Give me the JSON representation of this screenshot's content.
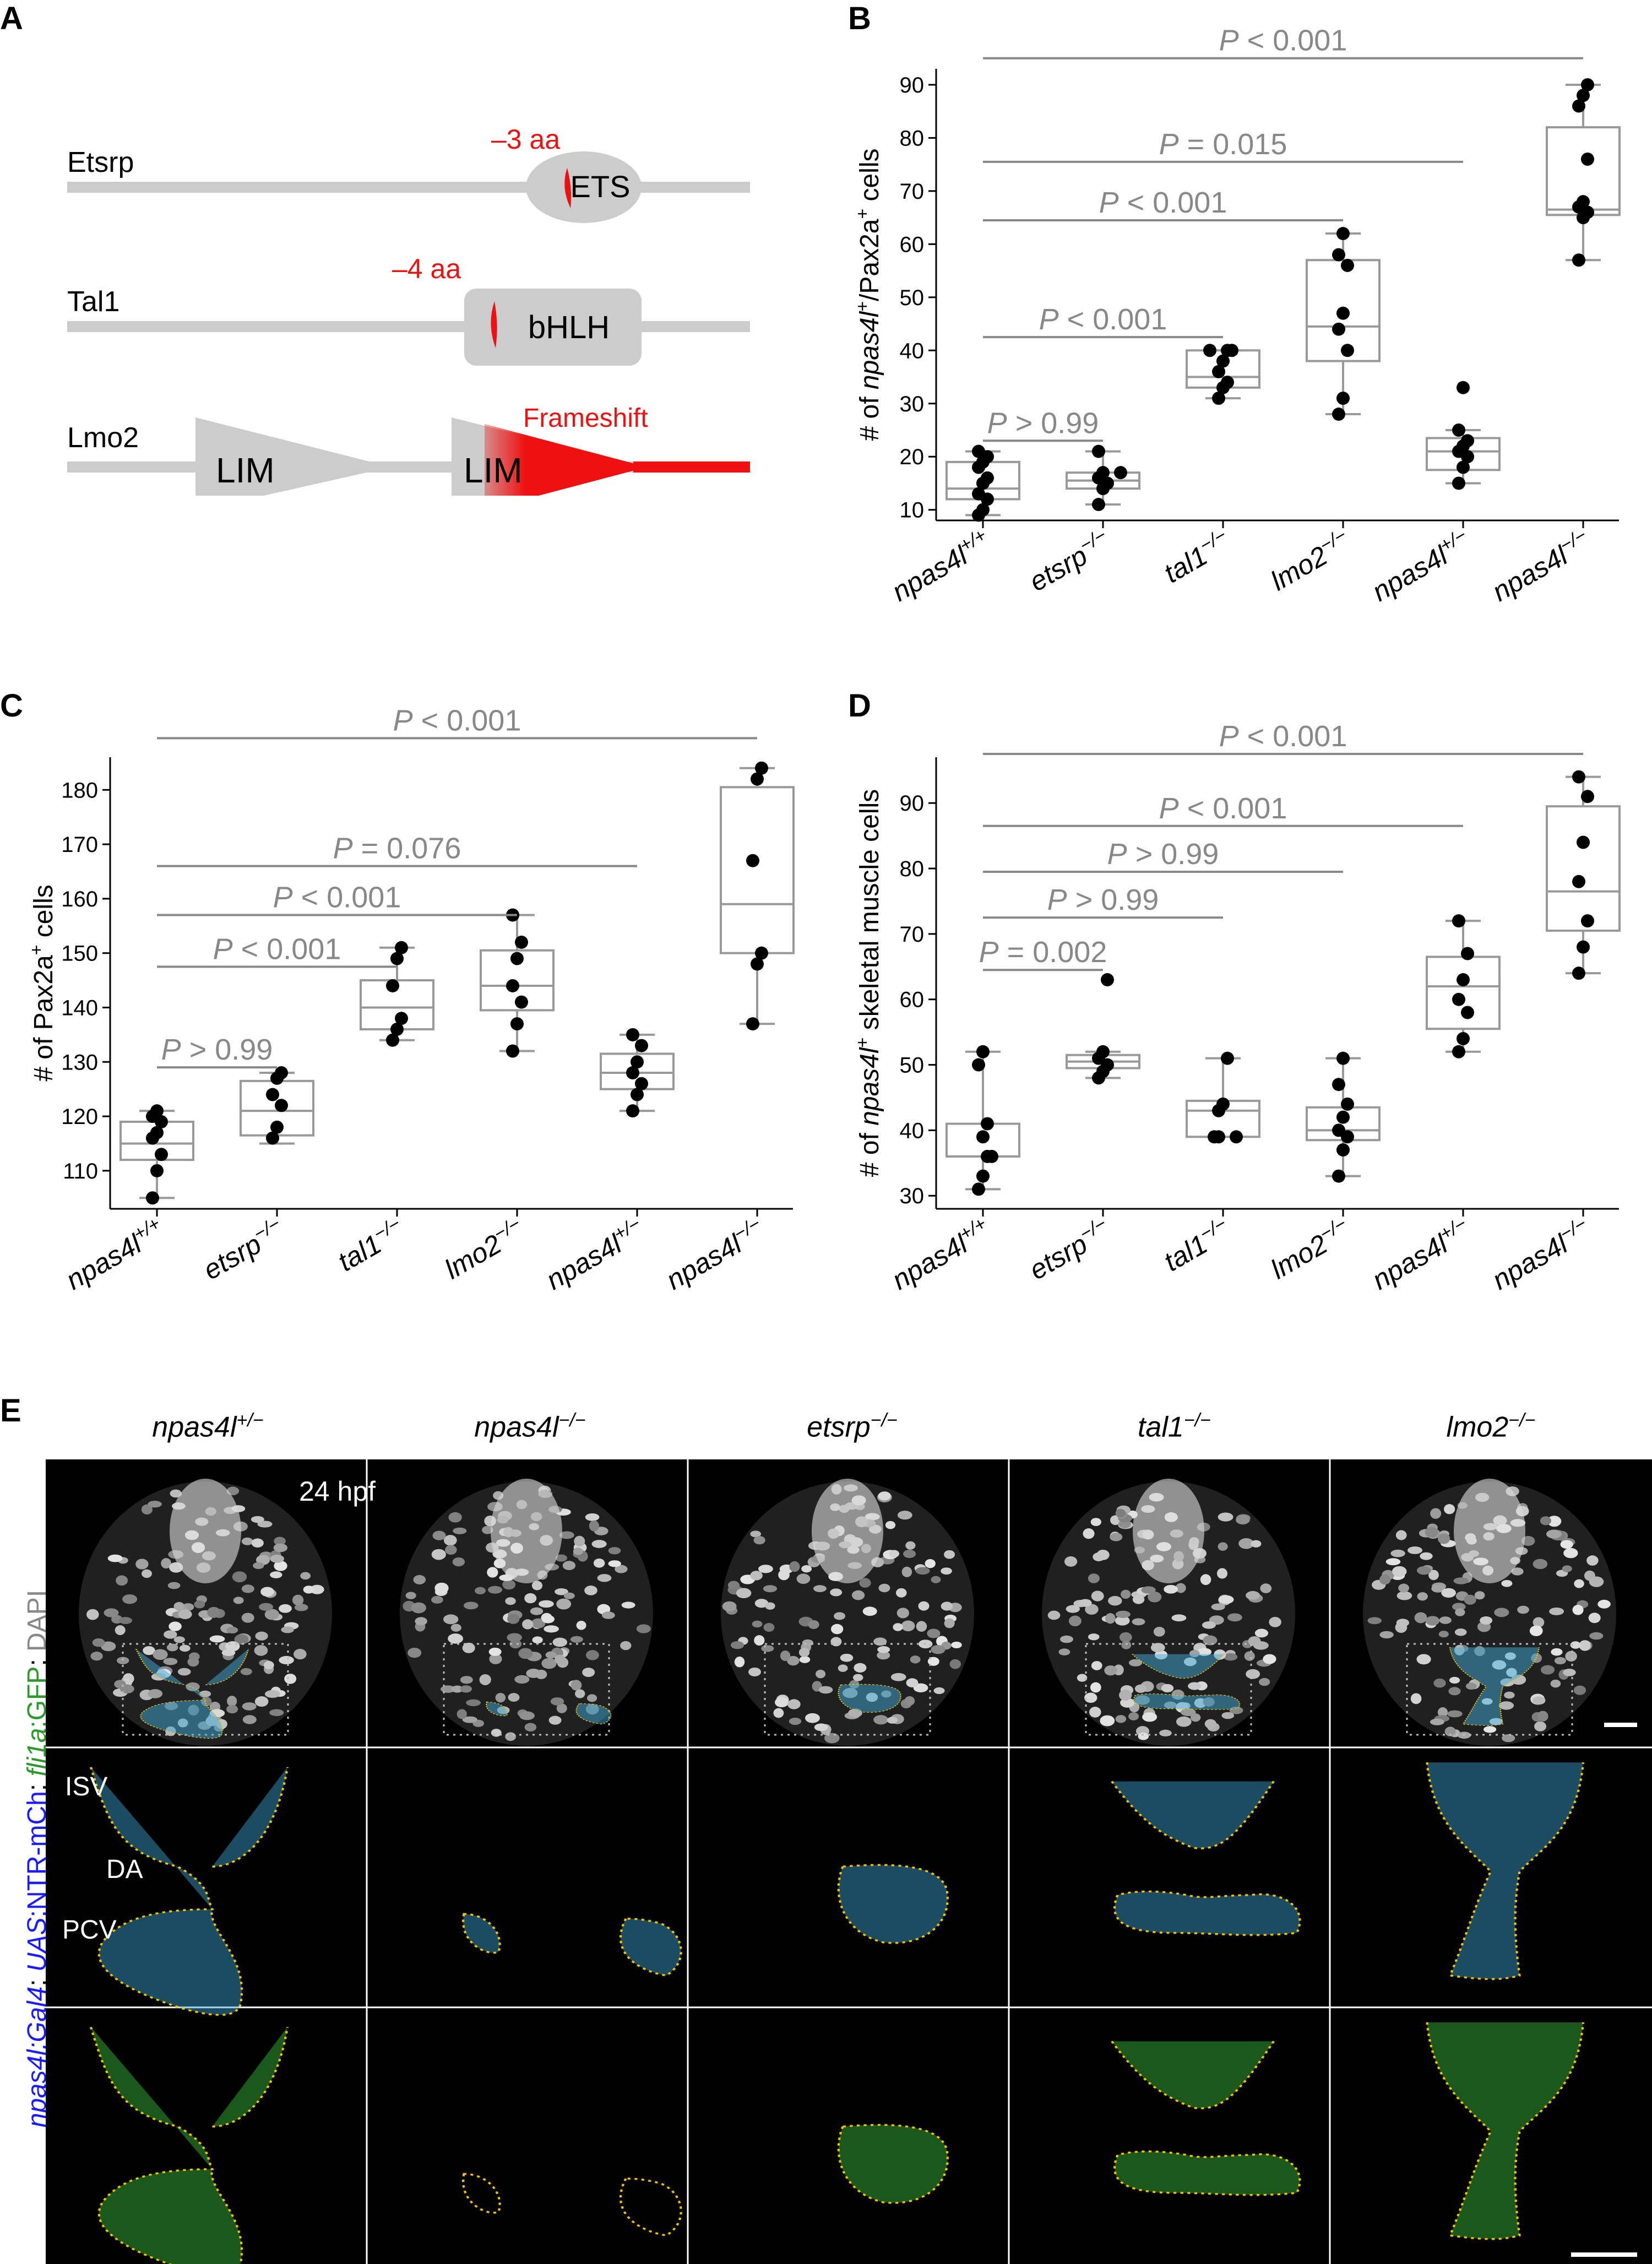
{
  "panel_letters": [
    "A",
    "B",
    "C",
    "D",
    "E"
  ],
  "panelA": {
    "proteins": [
      {
        "name": "Etsrp",
        "domain": "ETS",
        "mutation": "–3 aa"
      },
      {
        "name": "Tal1",
        "domain": "bHLH",
        "mutation": "–4 aa"
      },
      {
        "name": "Lmo2",
        "domains": [
          "LIM",
          "LIM"
        ],
        "mutation": "Frameshift"
      }
    ],
    "colors": {
      "protein": "#cccccc",
      "mutation": "#ee1111"
    }
  },
  "chart_data": [
    {
      "panel": "B",
      "type": "box",
      "ylabel_parts": [
        "# of ",
        "npas4l",
        "+",
        "/Pax2a",
        "+",
        " cells"
      ],
      "ylim": [
        8,
        93
      ],
      "yticks": [
        10,
        20,
        30,
        40,
        50,
        60,
        70,
        80,
        90
      ],
      "categories": [
        {
          "g": "npas4l",
          "s": "+/+"
        },
        {
          "g": "etsrp",
          "s": "−/−"
        },
        {
          "g": "tal1",
          "s": "−/−"
        },
        {
          "g": "lmo2",
          "s": "−/−"
        },
        {
          "g": "npas4l",
          "s": "+/−"
        },
        {
          "g": "npas4l",
          "s": "−/−"
        }
      ],
      "boxes": [
        {
          "whislo": 9,
          "q1": 12,
          "med": 14,
          "q3": 19,
          "whishi": 21
        },
        {
          "whislo": 11,
          "q1": 14,
          "med": 15.5,
          "q3": 17,
          "whishi": 21
        },
        {
          "whislo": 31,
          "q1": 33,
          "med": 35,
          "q3": 40,
          "whishi": 40
        },
        {
          "whislo": 28,
          "q1": 38,
          "med": 44.5,
          "q3": 57,
          "whishi": 62
        },
        {
          "whislo": 15,
          "q1": 17.5,
          "med": 21,
          "q3": 23.5,
          "whishi": 25
        },
        {
          "whislo": 57,
          "q1": 65.5,
          "med": 66.5,
          "q3": 82,
          "whishi": 90
        }
      ],
      "points": [
        [
          9,
          10,
          12,
          13,
          15,
          16,
          18,
          19,
          20,
          21
        ],
        [
          11,
          14,
          15,
          16,
          17,
          17,
          21
        ],
        [
          31,
          33,
          34,
          36,
          38,
          40,
          40,
          40
        ],
        [
          28,
          31,
          40,
          44,
          47,
          56,
          58,
          62
        ],
        [
          15,
          18,
          20,
          21,
          22,
          23,
          25,
          33
        ],
        [
          57,
          65,
          66,
          67,
          68,
          76,
          86,
          88,
          90
        ]
      ],
      "comparisons": [
        {
          "from": 0,
          "to": 5,
          "label": "P < 0.001",
          "y": 95
        },
        {
          "from": 0,
          "to": 4,
          "label": "P = 0.015",
          "y": 75.5
        },
        {
          "from": 0,
          "to": 3,
          "label": "P < 0.001",
          "y": 64.5
        },
        {
          "from": 0,
          "to": 2,
          "label": "P < 0.001",
          "y": 42.5
        },
        {
          "from": 0,
          "to": 1,
          "label": "P > 0.99",
          "y": 23
        }
      ]
    },
    {
      "panel": "C",
      "type": "box",
      "ylabel_parts": [
        "# of Pax2a",
        "+",
        " cells"
      ],
      "ylim": [
        103,
        186
      ],
      "yticks": [
        110,
        120,
        130,
        140,
        150,
        160,
        170,
        180
      ],
      "categories": [
        {
          "g": "npas4l",
          "s": "+/+"
        },
        {
          "g": "etsrp",
          "s": "−/−"
        },
        {
          "g": "tal1",
          "s": "−/−"
        },
        {
          "g": "lmo2",
          "s": "−/−"
        },
        {
          "g": "npas4l",
          "s": "+/−"
        },
        {
          "g": "npas4l",
          "s": "−/−"
        }
      ],
      "boxes": [
        {
          "whislo": 105,
          "q1": 112,
          "med": 115,
          "q3": 119,
          "whishi": 121
        },
        {
          "whislo": 115,
          "q1": 116.5,
          "med": 121,
          "q3": 126.5,
          "whishi": 128
        },
        {
          "whislo": 134,
          "q1": 136,
          "med": 140,
          "q3": 145,
          "whishi": 151
        },
        {
          "whislo": 132,
          "q1": 139.5,
          "med": 144,
          "q3": 150.5,
          "whishi": 157
        },
        {
          "whislo": 121,
          "q1": 125,
          "med": 128,
          "q3": 131.5,
          "whishi": 135
        },
        {
          "whislo": 137,
          "q1": 150,
          "med": 159,
          "q3": 180.5,
          "whishi": 184
        }
      ],
      "points": [
        [
          105,
          110,
          113,
          116,
          117,
          119,
          120,
          121
        ],
        [
          116,
          118,
          122,
          124,
          127,
          128
        ],
        [
          134,
          136,
          138,
          144,
          149,
          151
        ],
        [
          132,
          137,
          141,
          144,
          149,
          152,
          157
        ],
        [
          121,
          124,
          126,
          128,
          130,
          133,
          135
        ],
        [
          137,
          148,
          150,
          167,
          182,
          184
        ]
      ],
      "comparisons": [
        {
          "from": 0,
          "to": 5,
          "label": "P < 0.001",
          "y": 189.5
        },
        {
          "from": 0,
          "to": 4,
          "label": "P = 0.076",
          "y": 166
        },
        {
          "from": 0,
          "to": 3,
          "label": "P < 0.001",
          "y": 157
        },
        {
          "from": 0,
          "to": 2,
          "label": "P < 0.001",
          "y": 147.5
        },
        {
          "from": 0,
          "to": 1,
          "label": "P > 0.99",
          "y": 129
        }
      ]
    },
    {
      "panel": "D",
      "type": "box",
      "ylabel_parts": [
        "# of ",
        "npas4l",
        "+",
        " skeletal muscle cells"
      ],
      "ylim": [
        28,
        97
      ],
      "yticks": [
        30,
        40,
        50,
        60,
        70,
        80,
        90
      ],
      "categories": [
        {
          "g": "npas4l",
          "s": "+/+"
        },
        {
          "g": "etsrp",
          "s": "−/−"
        },
        {
          "g": "tal1",
          "s": "−/−"
        },
        {
          "g": "lmo2",
          "s": "−/−"
        },
        {
          "g": "npas4l",
          "s": "+/−"
        },
        {
          "g": "npas4l",
          "s": "−/−"
        }
      ],
      "boxes": [
        {
          "whislo": 31,
          "q1": 36,
          "med": 36,
          "q3": 41,
          "whishi": 52
        },
        {
          "whislo": 48,
          "q1": 49.5,
          "med": 50.5,
          "q3": 51.5,
          "whishi": 52
        },
        {
          "whislo": 39,
          "q1": 39,
          "med": 43,
          "q3": 44.5,
          "whishi": 51
        },
        {
          "whislo": 33,
          "q1": 38.5,
          "med": 40,
          "q3": 43.5,
          "whishi": 51
        },
        {
          "whislo": 52,
          "q1": 55.5,
          "med": 62,
          "q3": 66.5,
          "whishi": 72
        },
        {
          "whislo": 64,
          "q1": 70.5,
          "med": 76.5,
          "q3": 89.5,
          "whishi": 94
        }
      ],
      "points": [
        [
          31,
          33,
          36,
          36,
          39,
          41,
          50,
          52
        ],
        [
          48,
          49,
          50,
          51,
          52,
          63
        ],
        [
          39,
          39,
          39,
          43,
          44,
          51
        ],
        [
          33,
          37,
          39,
          40,
          42,
          44,
          47,
          51
        ],
        [
          52,
          54,
          58,
          60,
          63,
          67,
          72
        ],
        [
          64,
          68,
          72,
          78,
          84,
          91,
          94
        ]
      ],
      "comparisons": [
        {
          "from": 0,
          "to": 5,
          "label": "P < 0.001",
          "y": 97.5
        },
        {
          "from": 0,
          "to": 4,
          "label": "P < 0.001",
          "y": 86.5
        },
        {
          "from": 0,
          "to": 3,
          "label": "P > 0.99",
          "y": 79.5
        },
        {
          "from": 0,
          "to": 2,
          "label": "P > 0.99",
          "y": 72.5
        },
        {
          "from": 0,
          "to": 1,
          "label": "P = 0.002",
          "y": 64.5
        }
      ]
    }
  ],
  "panelE": {
    "columns": [
      {
        "g": "npas4l",
        "s": "+/−"
      },
      {
        "g": "npas4l",
        "s": "−/−"
      },
      {
        "g": "etsrp",
        "s": "−/−"
      },
      {
        "g": "tal1",
        "s": "−/−"
      },
      {
        "g": "lmo2",
        "s": "−/−"
      }
    ],
    "timepoint": "24 hpf",
    "vessel_labels": [
      "ISV",
      "DA",
      "PCV"
    ],
    "side_label": {
      "npas4l_gal4": "npas4l:Gal4",
      "sep1": "; ",
      "uas": "UAS",
      "ntr": ":NTR-mCh",
      "sep2": "; ",
      "fli1a": "fli1a",
      "gfp": ":GFP",
      "dapi": "DAPI"
    },
    "colors": {
      "dapi": "#cfcfcf",
      "cyan": "#3fa9d6",
      "green": "#3cc43c",
      "outline": "#f2c200",
      "blue_label": "#1a1aff",
      "green_label": "#2a9a2a"
    }
  }
}
